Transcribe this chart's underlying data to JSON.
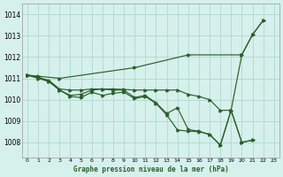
{
  "xlabel": "Graphe pression niveau de la mer (hPa)",
  "xlim": [
    -0.5,
    23.5
  ],
  "ylim": [
    1007.3,
    1014.5
  ],
  "yticks": [
    1008,
    1009,
    1010,
    1011,
    1012,
    1013,
    1014
  ],
  "xticks": [
    0,
    1,
    2,
    3,
    4,
    5,
    6,
    7,
    8,
    9,
    10,
    11,
    12,
    13,
    14,
    15,
    16,
    17,
    18,
    19,
    20,
    21,
    22,
    23
  ],
  "bg_color": "#d6f0ec",
  "grid_color": "#b0d8d0",
  "line_color": "#2a5f2a",
  "series1_x": [
    0,
    1,
    3,
    10,
    15,
    20,
    21,
    22
  ],
  "series1_y": [
    1011.15,
    1011.1,
    1011.0,
    1011.5,
    1012.1,
    1012.1,
    1013.05,
    1013.72
  ],
  "series2_x": [
    0,
    1,
    2,
    3,
    4,
    5,
    6,
    7,
    8,
    9,
    10,
    11,
    12,
    13,
    14,
    15,
    16,
    17,
    18,
    19,
    20,
    21,
    22
  ],
  "series2_y": [
    1011.15,
    1011.05,
    1010.9,
    1010.5,
    1010.45,
    1010.45,
    1010.5,
    1010.5,
    1010.5,
    1010.48,
    1010.45,
    1010.45,
    1010.45,
    1010.45,
    1010.45,
    1010.25,
    1010.15,
    1010.0,
    1009.5,
    1009.5,
    1012.1,
    1013.05,
    1013.72
  ],
  "series3_x": [
    0,
    1,
    2,
    3,
    4,
    5,
    6,
    7,
    8,
    9,
    10,
    11,
    12,
    13,
    14,
    15,
    16,
    17,
    18,
    19,
    20,
    21
  ],
  "series3_y": [
    1011.15,
    1011.05,
    1010.85,
    1010.45,
    1010.2,
    1010.25,
    1010.45,
    1010.5,
    1010.45,
    1010.45,
    1010.1,
    1010.2,
    1009.85,
    1009.35,
    1009.62,
    1008.6,
    1008.52,
    1008.35,
    1007.88,
    1009.5,
    1008.0,
    1008.1
  ],
  "series4_x": [
    0,
    1,
    2,
    3,
    4,
    5,
    6,
    7,
    8,
    9,
    10,
    11,
    12,
    13,
    14,
    15,
    16,
    17,
    18,
    19,
    20,
    21
  ],
  "series4_y": [
    1011.15,
    1011.0,
    1010.85,
    1010.45,
    1010.15,
    1010.1,
    1010.35,
    1010.2,
    1010.3,
    1010.35,
    1010.05,
    1010.15,
    1009.82,
    1009.28,
    1008.58,
    1008.52,
    1008.5,
    1008.38,
    1007.85,
    1009.5,
    1008.0,
    1008.1
  ]
}
